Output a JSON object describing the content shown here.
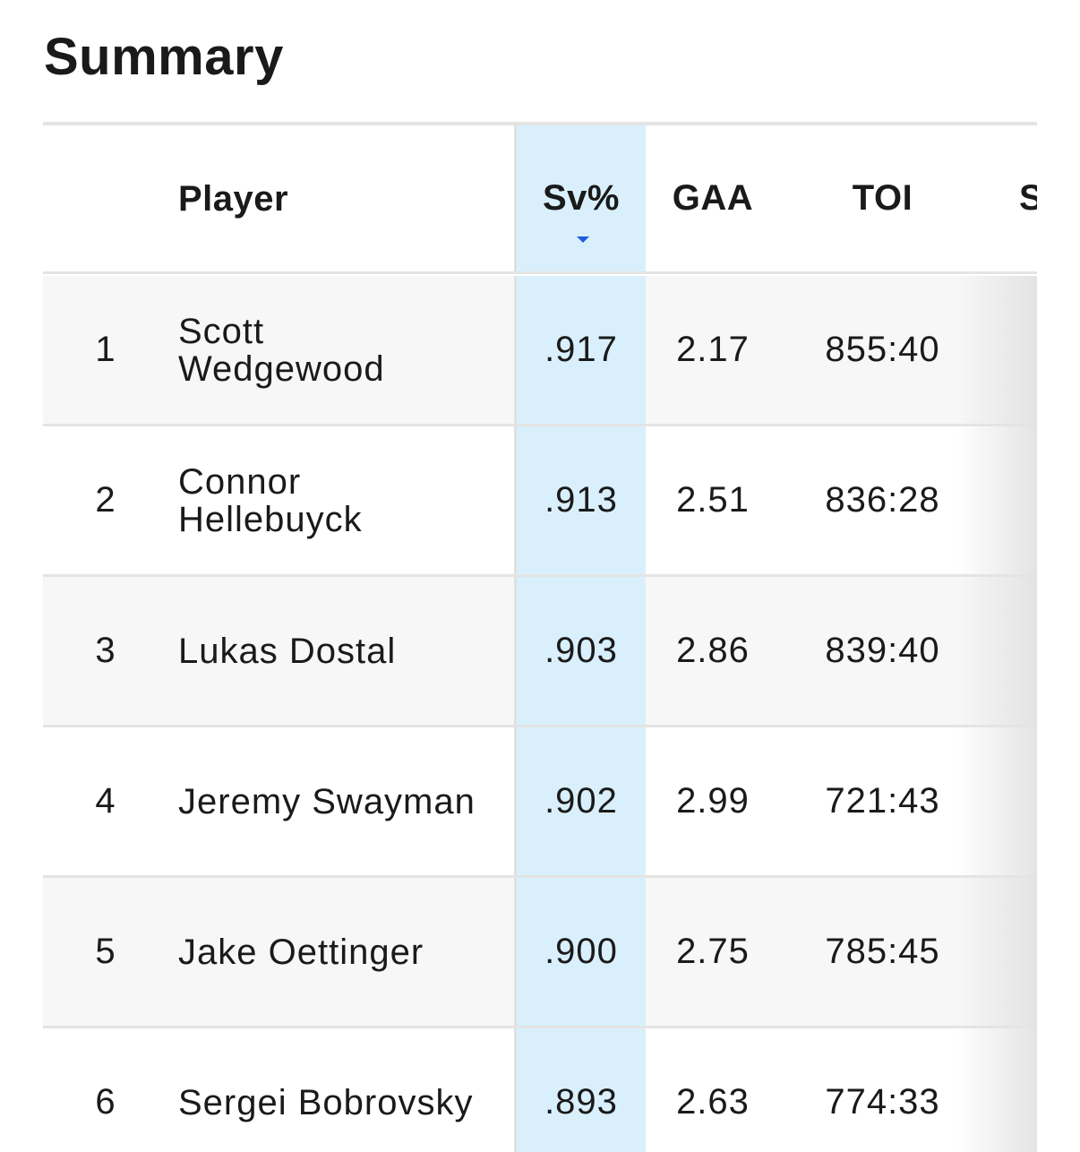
{
  "title": "Summary",
  "columns": {
    "player": "Player",
    "sv": "Sv%",
    "gaa": "GAA",
    "toi": "TOI",
    "partial": "S"
  },
  "sort": {
    "column": "Sv%",
    "direction": "descending",
    "accent": "#1a5fe0"
  },
  "rows": [
    {
      "rank": "1",
      "player": "Scott Wedgewood",
      "sv": ".917",
      "gaa": "2.17",
      "toi": "855:40"
    },
    {
      "rank": "2",
      "player": "Connor Hellebuyck",
      "sv": ".913",
      "gaa": "2.51",
      "toi": "836:28"
    },
    {
      "rank": "3",
      "player": "Lukas Dostal",
      "sv": ".903",
      "gaa": "2.86",
      "toi": "839:40"
    },
    {
      "rank": "4",
      "player": "Jeremy Swayman",
      "sv": ".902",
      "gaa": "2.99",
      "toi": "721:43"
    },
    {
      "rank": "5",
      "player": "Jake Oettinger",
      "sv": ".900",
      "gaa": "2.75",
      "toi": "785:45"
    },
    {
      "rank": "6",
      "player": "Sergei Bobrovsky",
      "sv": ".893",
      "gaa": "2.63",
      "toi": "774:33"
    }
  ]
}
